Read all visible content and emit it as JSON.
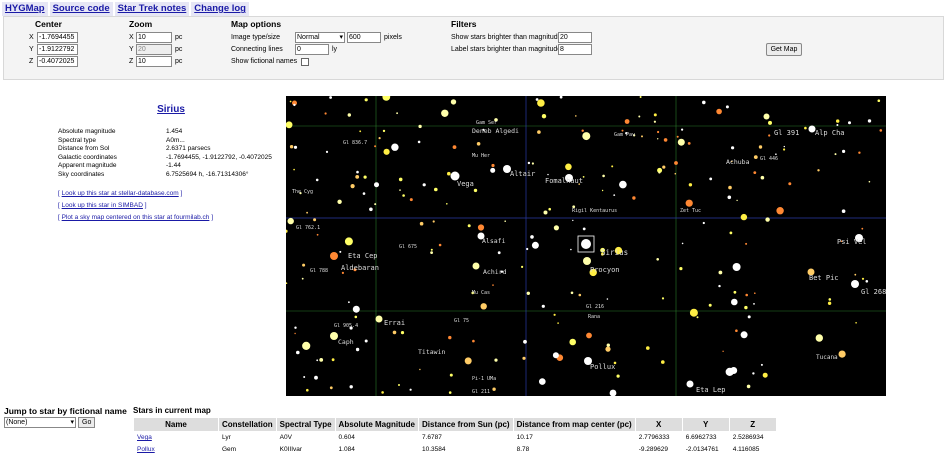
{
  "nav": [
    "HYGMap",
    "Source code",
    "Star Trek notes",
    "Change log"
  ],
  "controls": {
    "center": {
      "title": "Center",
      "x": "-1.7694455",
      "y": "-1.9122792",
      "z": "-0.4072025"
    },
    "zoom": {
      "title": "Zoom",
      "x": "10",
      "y": "20",
      "z": "10",
      "unit": "pc"
    },
    "map_options": {
      "title": "Map options",
      "image_label": "Image type/size",
      "image_type": "Normal",
      "image_size": "600",
      "image_unit": "pixels",
      "lines_label": "Connecting lines",
      "lines_value": "0",
      "lines_unit": "ly",
      "fictional_label": "Show fictional names"
    },
    "filters": {
      "title": "Filters",
      "brighter_label": "Show stars brighter than magnitude",
      "brighter_value": "20",
      "label_label": "Label stars brighter than magnitude",
      "label_value": "8"
    },
    "get_map": "Get Map"
  },
  "star": {
    "name": "Sirius",
    "fields": [
      {
        "k": "Absolute magnitude",
        "v": "1.454"
      },
      {
        "k": "Spectral type",
        "v": "A0m..."
      },
      {
        "k": "Distance from Sol",
        "v": "2.6371 parsecs"
      },
      {
        "k": "Galactic coordinates",
        "v": "-1.7694455, -1.9122792, -0.4072025"
      },
      {
        "k": "Apparent magnitude",
        "v": "-1.44"
      },
      {
        "k": "Sky coordinates",
        "v": "6.7525694 h, -16.71314306°"
      }
    ],
    "links": [
      "Look up this star at stellar-database.com",
      "Look up this star in SIMBAD",
      "Plot a sky map centered on this star at fourmilab.ch"
    ]
  },
  "map_labels": {
    "vega": "Vega",
    "altair": "Altair",
    "deneb": "Deneb Algedi",
    "fomalhaut": "Fomalhaut",
    "sirius": "Sirius",
    "procyon": "Procyon",
    "aldebaran": "Aldebaran",
    "eta_cep": "Eta Cep",
    "achird": "Achird",
    "errai": "Errai",
    "caph": "Caph",
    "titawin": "Titawin",
    "pollux": "Pollux",
    "eta_lep": "Eta Lep",
    "psi_vel": "Psi Vel",
    "bet_pic": "Bet Pic",
    "gl_268": "Gl 268",
    "alp_cha": "Alp Cha",
    "achuba": "Achuba",
    "gl_391": "Gl 391",
    "gl_446": "Gl 446",
    "alsafi": "Alsafi",
    "gl_905_4": "Gl 905.4",
    "kapa_tuc": "Tucana",
    "rigil": "Rigil Kentaurus",
    "the_cyg": "The Cyg",
    "gl_788": "Gl 788",
    "gl_762_1": "Gl 762.1",
    "gl_836_7": "Gl 836.7",
    "gam_pav": "Gam Pav",
    "gam_ser": "Gam Ser",
    "mu_her": "Mu Her",
    "rana": "Rana",
    "zet_tuc": "Zet Tuc",
    "mu_cas": "Mu Cas",
    "pi1_uma": "Pi-1 UMa",
    "gl_211": "Gl 211",
    "gl_75": "Gl 75",
    "gl_675": "Gl 675",
    "gl_216": "Gl 216"
  },
  "fictional": {
    "title": "Jump to star by fictional name",
    "selected": "(None)",
    "go": "Go"
  },
  "table": {
    "title": "Stars in current map",
    "headers": [
      "Name",
      "Constellation",
      "Spectral Type",
      "Absolute Magnitude",
      "Distance from Sun (pc)",
      "Distance from map center (pc)",
      "X",
      "Y",
      "Z"
    ],
    "rows": [
      [
        "Vega",
        "Lyr",
        "A0V",
        "0.604",
        "7.6787",
        "10.17",
        "2.7796333",
        "6.6962733",
        "2.5286934"
      ],
      [
        "Pollux",
        "Gem",
        "K0IIIvar",
        "1.084",
        "10.3584",
        "8.78",
        "-9.289629",
        "-2.0134761",
        "4.116085"
      ]
    ]
  },
  "colors": {
    "link": "#1a1aa6",
    "grid": "#2a7a2a",
    "axis": "#2a3aa6"
  }
}
